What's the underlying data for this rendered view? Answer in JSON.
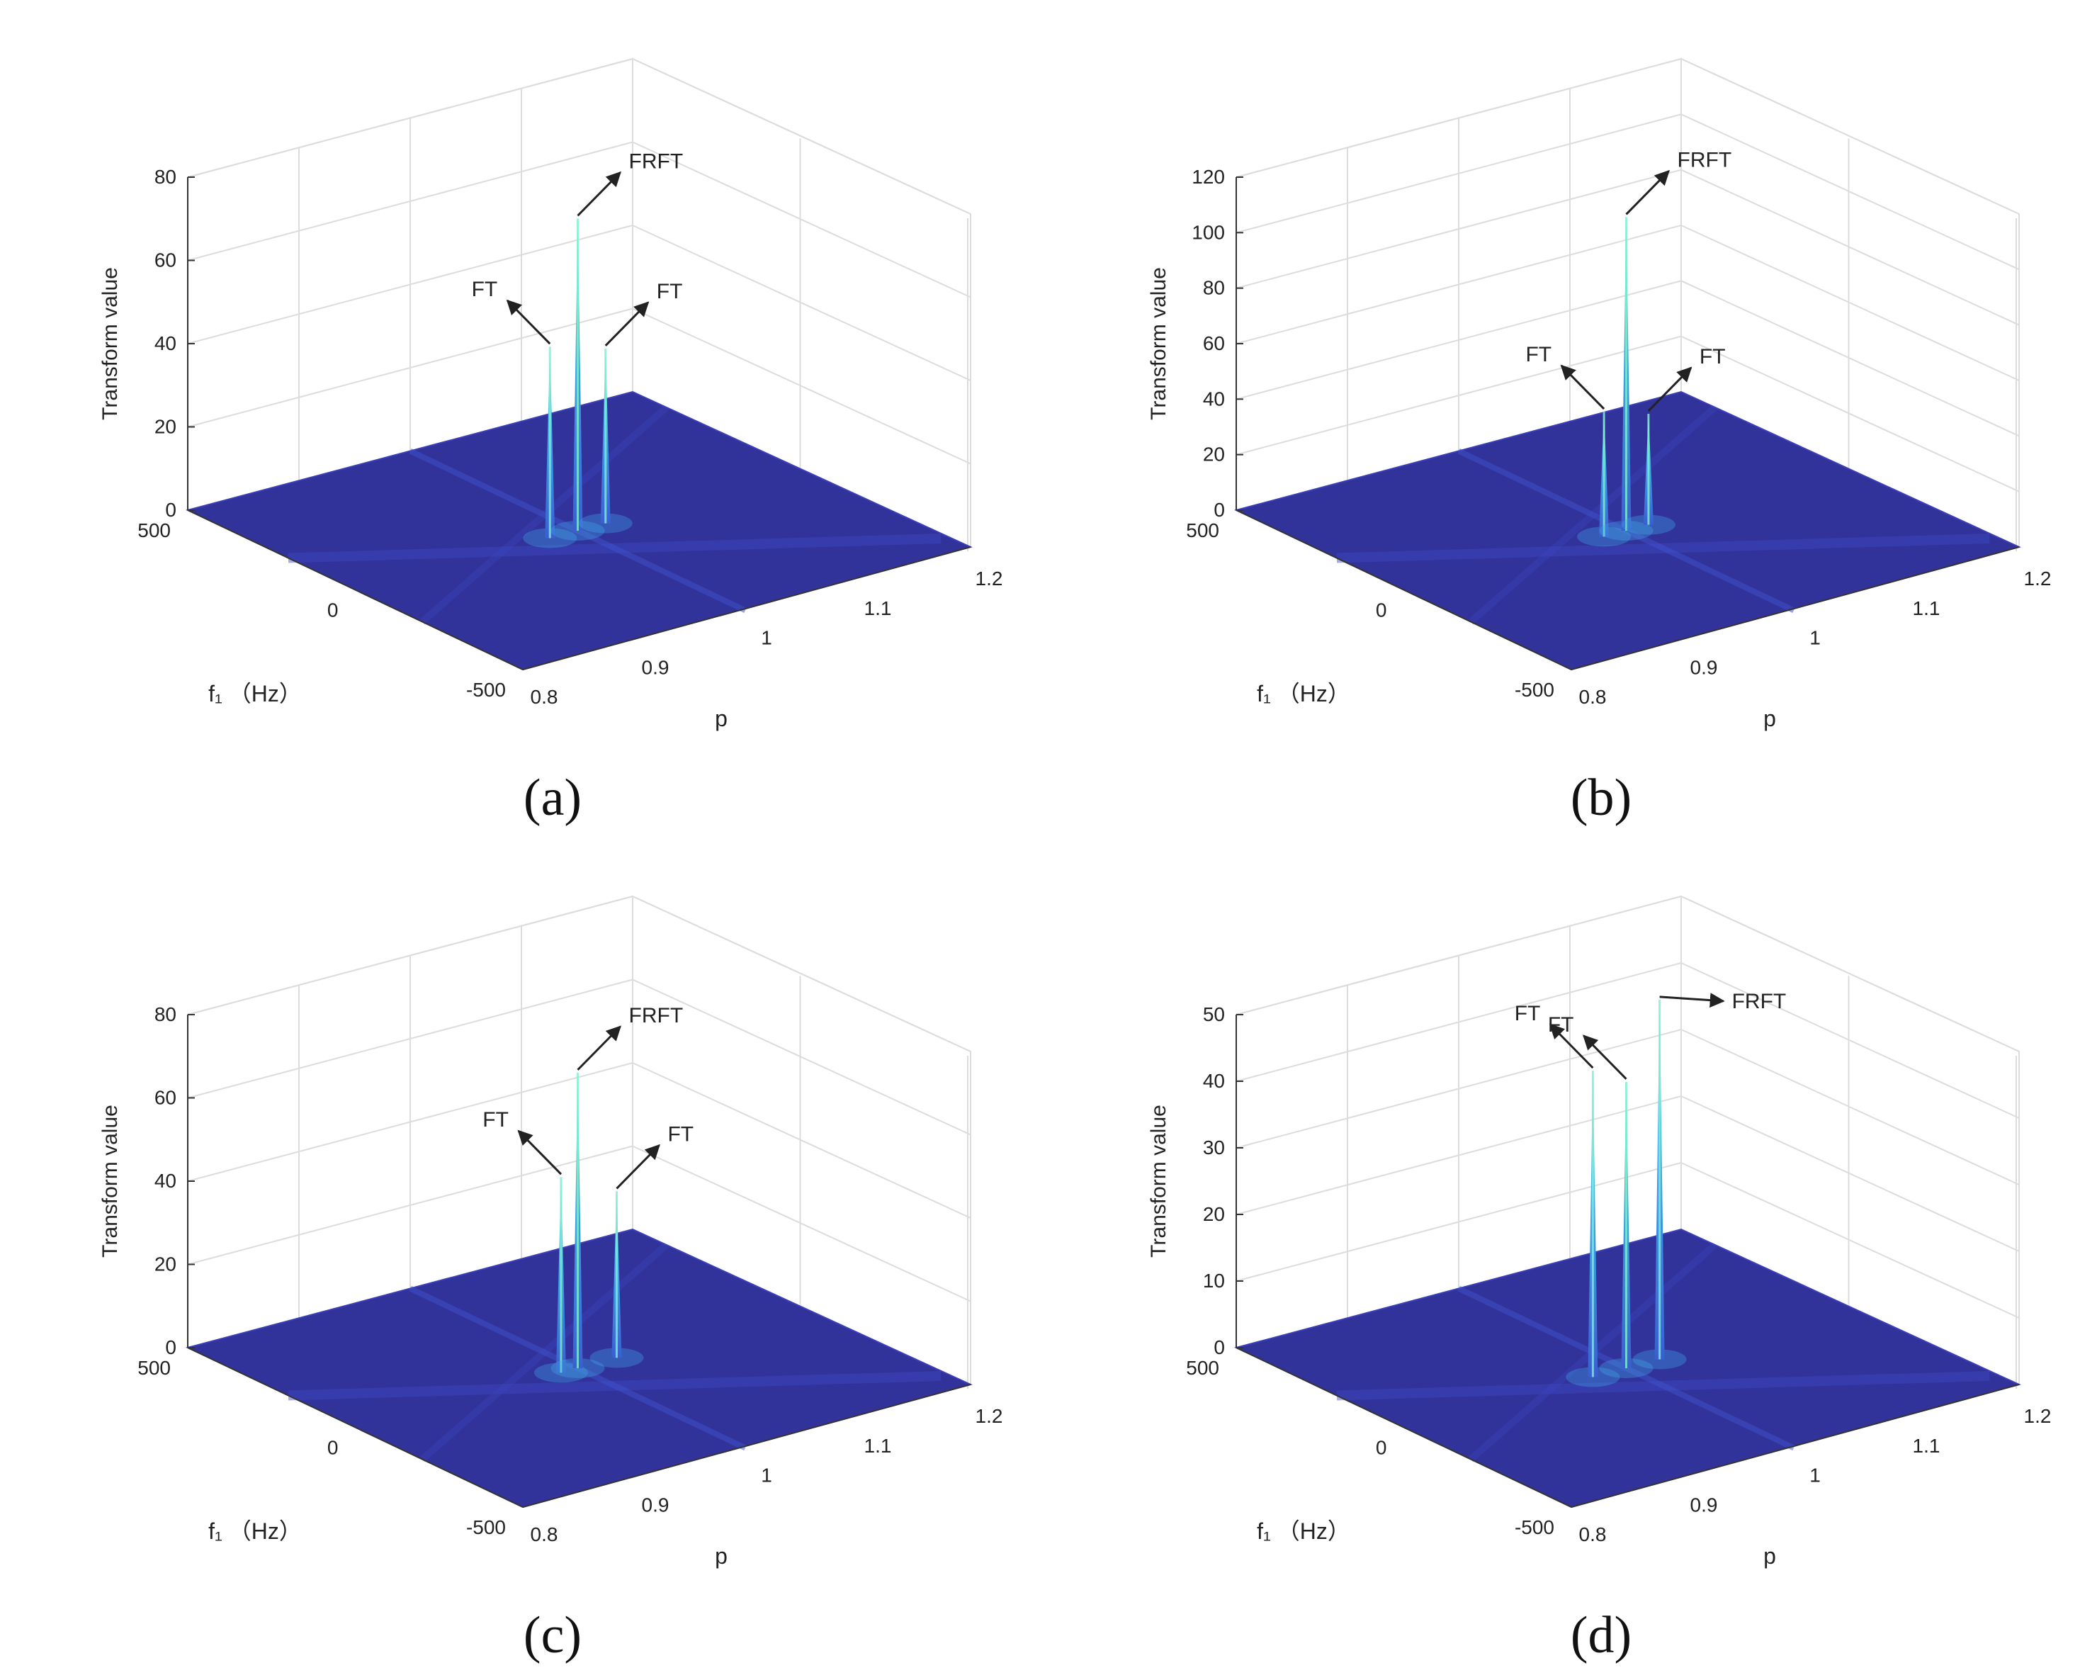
{
  "figure": {
    "panel_count": 4,
    "colors": {
      "floor": "#32329b",
      "floor_edge": "#3b3fb8",
      "peak_top": "#7ff0d0",
      "peak_mid": "#3fa8e8",
      "peak_base": "#3a5fd0",
      "grid": "#dcdcdc",
      "axis": "#333333"
    }
  },
  "chart_data": [
    {
      "type": "surface3d",
      "caption": "(a)",
      "zlabel": "Transform value",
      "xlabel": "f₁ （Hz）",
      "ylabel": "p",
      "zlim": [
        0,
        80
      ],
      "zticks": [
        "0",
        "20",
        "40",
        "60",
        "80"
      ],
      "fticks": [
        "500",
        "0",
        "-500"
      ],
      "pticks": [
        "0.8",
        "0.9",
        "1",
        "1.1",
        "1.2"
      ],
      "peaks": [
        {
          "label": "FT",
          "p": 0.975,
          "f": 0,
          "value": 46,
          "arrow": "up-left"
        },
        {
          "label": "FRFT",
          "p": 1.0,
          "f": 0,
          "value": 75,
          "arrow": "up-right"
        },
        {
          "label": "FT",
          "p": 1.025,
          "f": 0,
          "value": 42,
          "arrow": "up-right"
        }
      ]
    },
    {
      "type": "surface3d",
      "caption": "(b)",
      "zlabel": "Transform value",
      "xlabel": "f₁ （Hz）",
      "ylabel": "p",
      "zlim": [
        0,
        120
      ],
      "zticks": [
        "0",
        "20",
        "40",
        "60",
        "80",
        "100",
        "120"
      ],
      "fticks": [
        "500",
        "0",
        "-500"
      ],
      "pticks": [
        "0.8",
        "0.9",
        "1",
        "1.1",
        "1.2"
      ],
      "peaks": [
        {
          "label": "FT",
          "p": 0.98,
          "f": 0,
          "value": 45,
          "arrow": "up-left"
        },
        {
          "label": "FRFT",
          "p": 1.0,
          "f": 0,
          "value": 113,
          "arrow": "up-right"
        },
        {
          "label": "FT",
          "p": 1.02,
          "f": 0,
          "value": 40,
          "arrow": "up-right"
        }
      ]
    },
    {
      "type": "surface3d",
      "caption": "(c)",
      "zlabel": "Transform value",
      "xlabel": "f₁ （Hz）",
      "ylabel": "p",
      "zlim": [
        0,
        80
      ],
      "zticks": [
        "0",
        "20",
        "40",
        "60",
        "80"
      ],
      "fticks": [
        "500",
        "0",
        "-500"
      ],
      "pticks": [
        "0.8",
        "0.9",
        "1",
        "1.1",
        "1.2"
      ],
      "peaks": [
        {
          "label": "FT",
          "p": 0.985,
          "f": 0,
          "value": 47,
          "arrow": "up-left"
        },
        {
          "label": "FRFT",
          "p": 1.0,
          "f": 0,
          "value": 71,
          "arrow": "up-right"
        },
        {
          "label": "FT",
          "p": 1.035,
          "f": 0,
          "value": 40,
          "arrow": "up-right"
        }
      ]
    },
    {
      "type": "surface3d",
      "caption": "(d)",
      "zlabel": "Transform value",
      "xlabel": "f₁ （Hz）",
      "ylabel": "p",
      "zlim": [
        0,
        50
      ],
      "zticks": [
        "0",
        "10",
        "20",
        "30",
        "40",
        "50"
      ],
      "fticks": [
        "500",
        "0",
        "-500"
      ],
      "pticks": [
        "0.8",
        "0.9",
        "1",
        "1.1",
        "1.2"
      ],
      "peaks": [
        {
          "label": "FT",
          "p": 0.97,
          "f": 0,
          "value": 46,
          "arrow": "up-left"
        },
        {
          "label": "FT",
          "p": 1.0,
          "f": 0,
          "value": 43,
          "arrow": "up-left"
        },
        {
          "label": "FRFT",
          "p": 1.03,
          "f": 0,
          "value": 54,
          "arrow": "right"
        }
      ]
    }
  ]
}
